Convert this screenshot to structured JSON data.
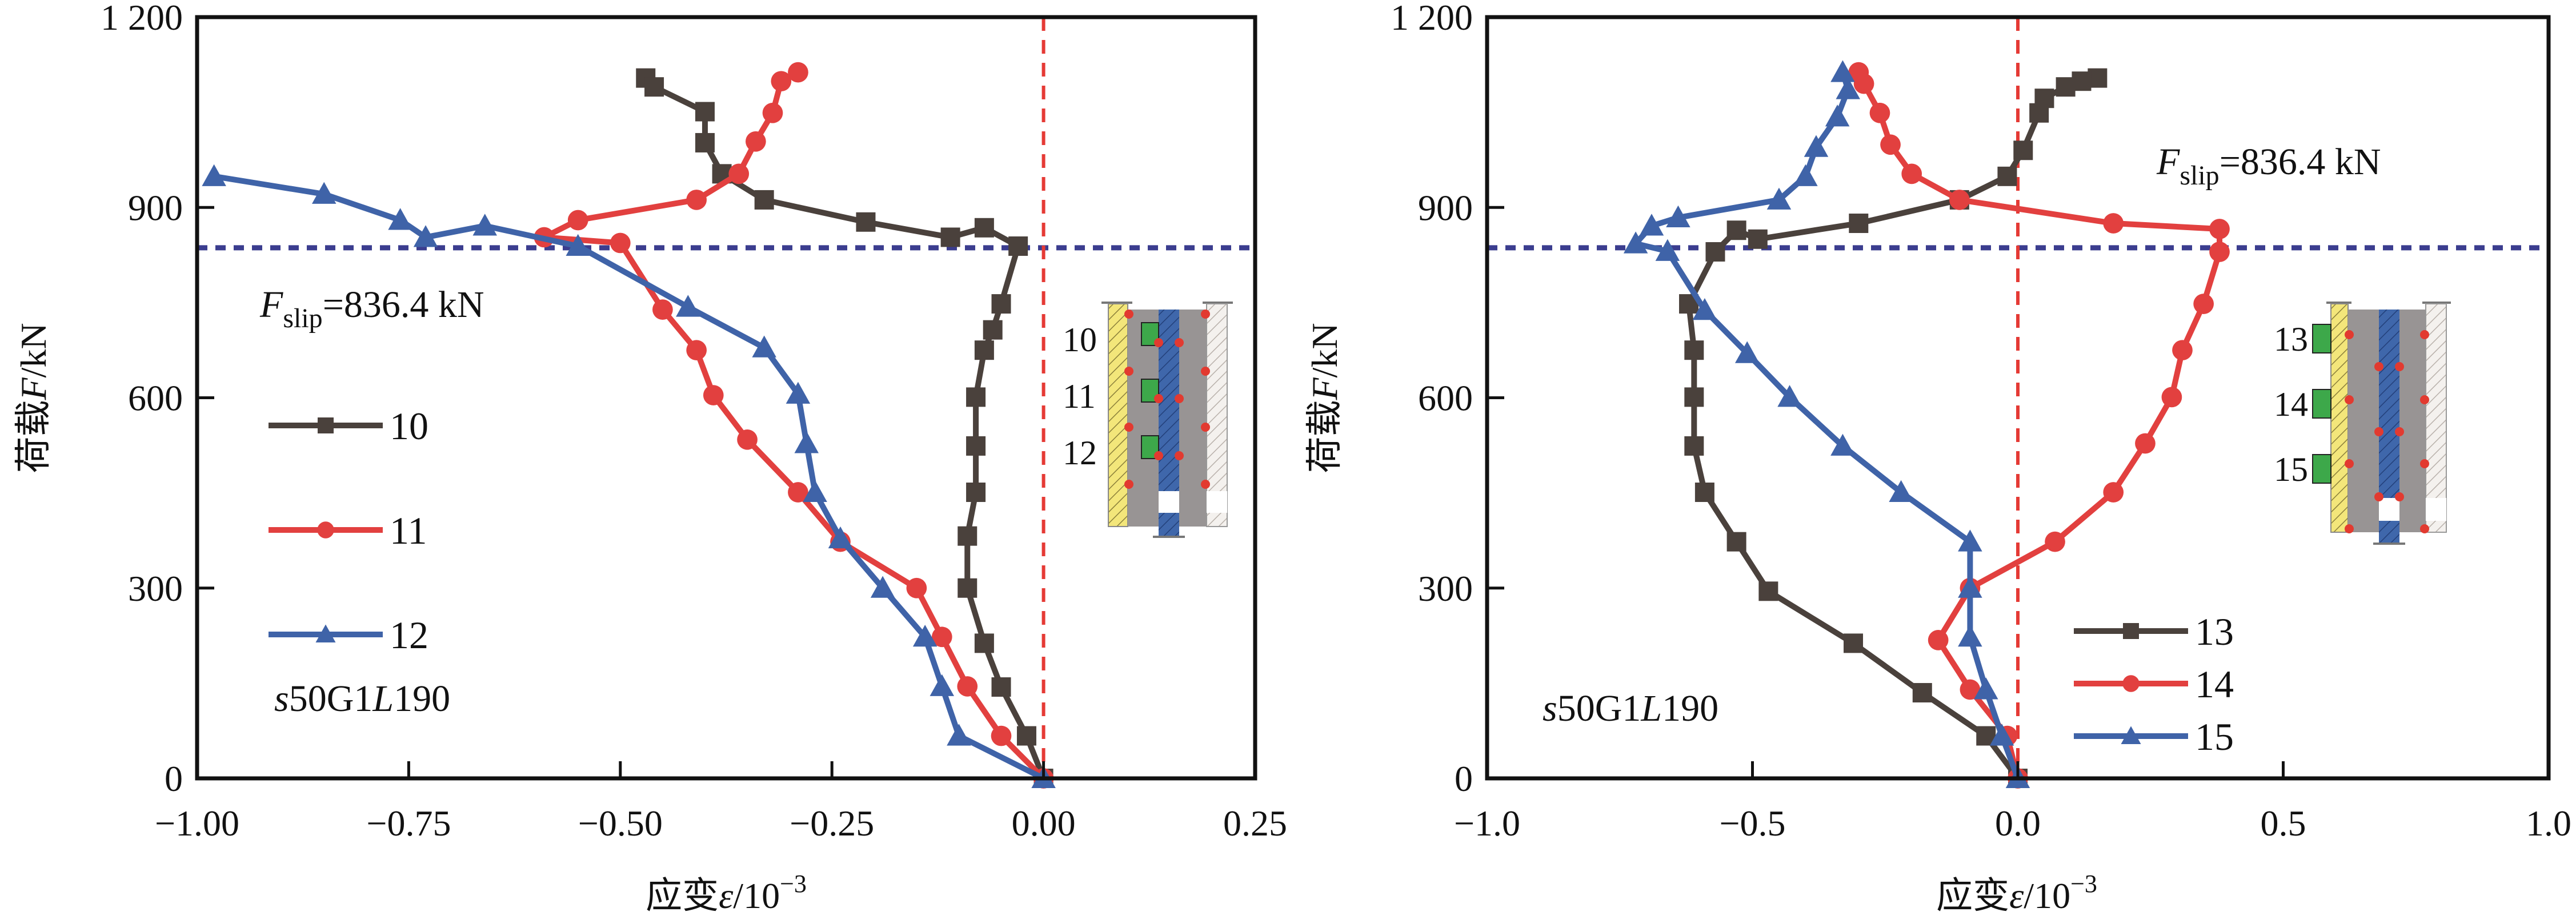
{
  "chart_data": [
    {
      "type": "line",
      "panel": "left",
      "title": "",
      "xlabel": "应变ε/10^-3",
      "xlabel_main": "应变",
      "xlabel_var": "ε",
      "xlabel_unit": "/10",
      "xlabel_exp": "−3",
      "ylabel": "荷载F/kN",
      "ylabel_main": "荷载",
      "ylabel_var": "F",
      "ylabel_unit": "/kN",
      "xlim": [
        -1.0,
        0.25
      ],
      "ylim": [
        0,
        1200
      ],
      "xticks": [
        -1.0,
        -0.75,
        -0.5,
        -0.25,
        0.0,
        0.25
      ],
      "xtick_labels": [
        "−1.00",
        "−0.75",
        "−0.50",
        "−0.25",
        "0.00",
        "0.25"
      ],
      "yticks": [
        0,
        300,
        600,
        900,
        1200
      ],
      "ytick_labels": [
        "0",
        "300",
        "600",
        "900",
        "1 200"
      ],
      "grid": false,
      "legend_position": "center-left",
      "reference_lines": {
        "horizontal": {
          "value": 836.4,
          "color": "#3b3d8f",
          "style": "dashed"
        },
        "vertical": {
          "value": 0.0,
          "color": "#e53a35",
          "style": "dashed"
        }
      },
      "annotations": {
        "fslip_var": "F",
        "fslip_sub": "slip",
        "fslip_value": "=836.4 kN",
        "specimen_prefix": "s",
        "specimen_mid": "50G1",
        "specimen_L": "L",
        "specimen_suffix": "190"
      },
      "inset_labels": [
        "10",
        "11",
        "12"
      ],
      "series": [
        {
          "name": "10",
          "color": "#4a413c",
          "marker": "square",
          "x": [
            -0.47,
            -0.46,
            -0.4,
            -0.4,
            -0.38,
            -0.33,
            -0.21,
            -0.11,
            -0.07,
            -0.03,
            -0.05,
            -0.06,
            -0.07,
            -0.08,
            -0.08,
            -0.08,
            -0.09,
            -0.09,
            -0.07,
            -0.05,
            -0.02,
            0.0
          ],
          "y": [
            1104,
            1090,
            1051,
            1002,
            953,
            912,
            877,
            853,
            868,
            839,
            748,
            707,
            675,
            601,
            524,
            451,
            382,
            300,
            213,
            144,
            67,
            0
          ]
        },
        {
          "name": "11",
          "color": "#e2403f",
          "marker": "circle",
          "x": [
            -0.29,
            -0.31,
            -0.32,
            -0.34,
            -0.36,
            -0.41,
            -0.55,
            -0.59,
            -0.5,
            -0.45,
            -0.41,
            -0.39,
            -0.35,
            -0.29,
            -0.24,
            -0.15,
            -0.12,
            -0.09,
            -0.05,
            0.0
          ],
          "y": [
            1113,
            1099,
            1049,
            1004,
            953,
            912,
            880,
            853,
            844,
            739,
            675,
            604,
            534,
            451,
            373,
            300,
            223,
            145,
            67,
            0
          ]
        },
        {
          "name": "12",
          "color": "#3f63a8",
          "marker": "triangle",
          "x": [
            -0.98,
            -0.85,
            -0.76,
            -0.73,
            -0.66,
            -0.55,
            -0.42,
            -0.33,
            -0.29,
            -0.28,
            -0.27,
            -0.24,
            -0.19,
            -0.14,
            -0.12,
            -0.1,
            0.0
          ],
          "y": [
            949,
            921,
            880,
            853,
            871,
            839,
            743,
            679,
            606,
            528,
            451,
            378,
            300,
            223,
            145,
            67,
            0
          ]
        }
      ]
    },
    {
      "type": "line",
      "panel": "right",
      "title": "",
      "xlabel": "应变ε/10^-3",
      "xlabel_main": "应变",
      "xlabel_var": "ε",
      "xlabel_unit": "/10",
      "xlabel_exp": "−3",
      "ylabel": "荷载F/kN",
      "ylabel_main": "荷载",
      "ylabel_var": "F",
      "ylabel_unit": "/kN",
      "xlim": [
        -1.0,
        1.0
      ],
      "ylim": [
        0,
        1200
      ],
      "xticks": [
        -1.0,
        -0.5,
        0.0,
        0.5,
        1.0
      ],
      "xtick_labels": [
        "−1.0",
        "−0.5",
        "0.0",
        "0.5",
        "1.0"
      ],
      "yticks": [
        0,
        300,
        600,
        900,
        1200
      ],
      "ytick_labels": [
        "0",
        "300",
        "600",
        "900",
        "1 200"
      ],
      "grid": false,
      "legend_position": "bottom-center-right",
      "reference_lines": {
        "horizontal": {
          "value": 836.4,
          "color": "#3b3d8f",
          "style": "dashed"
        },
        "vertical": {
          "value": 0.0,
          "color": "#e53a35",
          "style": "dashed"
        }
      },
      "annotations": {
        "fslip_var": "F",
        "fslip_sub": "slip",
        "fslip_value": "=836.4 kN",
        "specimen_prefix": "s",
        "specimen_mid": "50G1",
        "specimen_L": "L",
        "specimen_suffix": "190"
      },
      "inset_labels": [
        "13",
        "14",
        "15"
      ],
      "series": [
        {
          "name": "13",
          "color": "#4a413c",
          "marker": "square",
          "x": [
            0.15,
            0.12,
            0.09,
            0.05,
            0.04,
            0.01,
            -0.02,
            -0.11,
            -0.3,
            -0.49,
            -0.53,
            -0.57,
            -0.62,
            -0.61,
            -0.61,
            -0.61,
            -0.59,
            -0.53,
            -0.47,
            -0.31,
            -0.18,
            -0.06,
            0.0
          ],
          "y": [
            1104,
            1099,
            1090,
            1072,
            1049,
            990,
            949,
            912,
            875,
            850,
            864,
            830,
            748,
            675,
            601,
            524,
            451,
            373,
            295,
            213,
            135,
            67,
            0
          ]
        },
        {
          "name": "14",
          "color": "#e2403f",
          "marker": "circle",
          "x": [
            -0.3,
            -0.29,
            -0.26,
            -0.24,
            -0.2,
            -0.11,
            0.18,
            0.38,
            0.38,
            0.35,
            0.31,
            0.29,
            0.24,
            0.18,
            0.07,
            -0.09,
            -0.15,
            -0.09,
            -0.02,
            0.0
          ],
          "y": [
            1113,
            1095,
            1049,
            999,
            953,
            912,
            875,
            866,
            830,
            748,
            675,
            601,
            528,
            451,
            373,
            300,
            218,
            140,
            67,
            0
          ]
        },
        {
          "name": "15",
          "color": "#3f63a8",
          "marker": "triangle",
          "x": [
            -0.33,
            -0.32,
            -0.34,
            -0.38,
            -0.4,
            -0.45,
            -0.64,
            -0.69,
            -0.72,
            -0.66,
            -0.59,
            -0.51,
            -0.43,
            -0.33,
            -0.22,
            -0.09,
            -0.09,
            -0.09,
            -0.06,
            -0.03,
            0.0
          ],
          "y": [
            1113,
            1086,
            1043,
            995,
            949,
            912,
            884,
            871,
            843,
            831,
            738,
            670,
            601,
            524,
            451,
            373,
            300,
            223,
            140,
            67,
            0
          ]
        }
      ]
    }
  ]
}
